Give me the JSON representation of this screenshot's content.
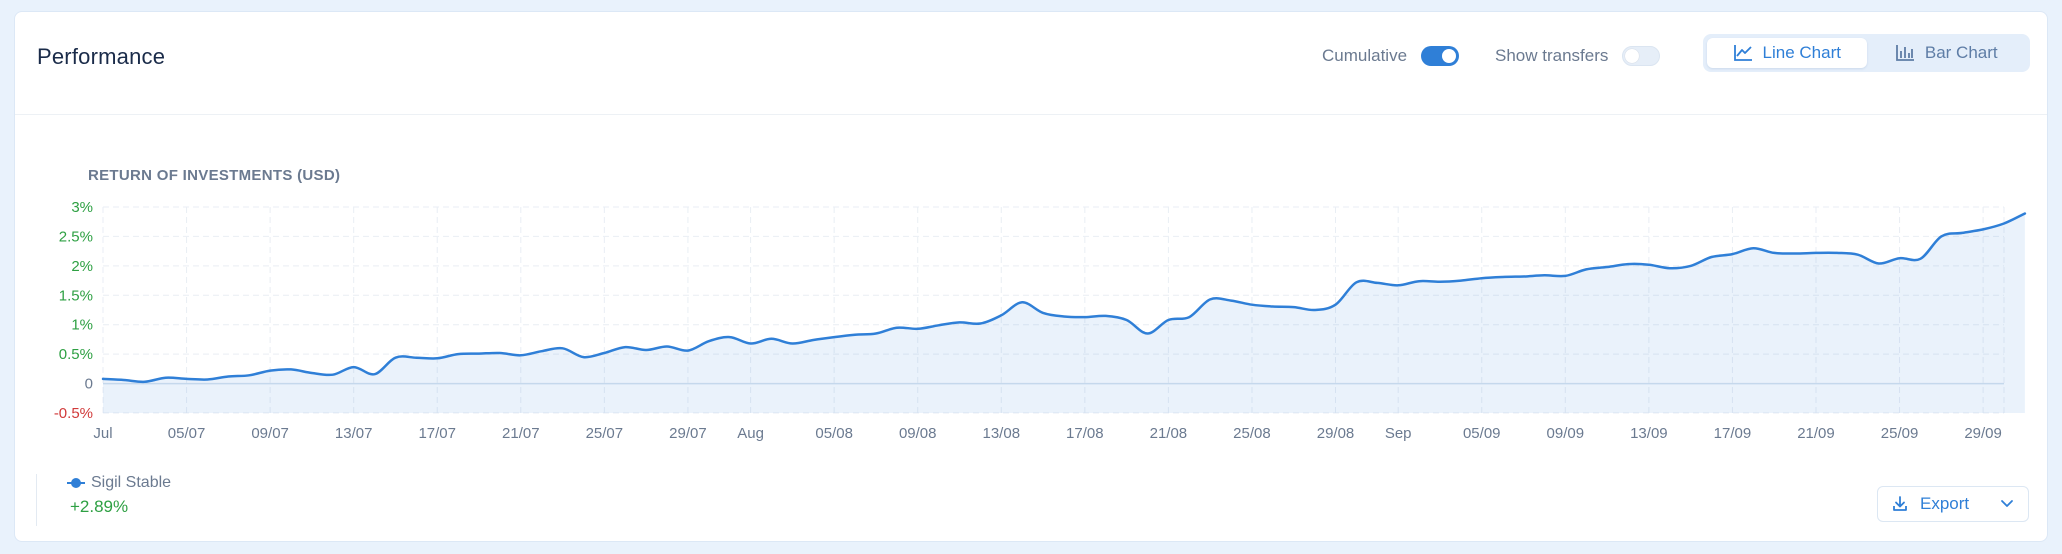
{
  "header": {
    "title": "Performance",
    "cumulative_label": "Cumulative",
    "cumulative_on": true,
    "transfers_label": "Show transfers",
    "transfers_on": false,
    "view_options": [
      {
        "label": "Line Chart",
        "icon": "line-chart-icon",
        "active": true
      },
      {
        "label": "Bar Chart",
        "icon": "bar-chart-icon",
        "active": false
      }
    ]
  },
  "chart_data": {
    "type": "area",
    "title": "RETURN OF INVESTMENTS (USD)",
    "ylim": [
      -0.5,
      3
    ],
    "y_ticks": [
      -0.5,
      0,
      0.5,
      1,
      1.5,
      2,
      2.5,
      3
    ],
    "y_tick_labels": [
      "-0.5%",
      "0",
      "0.5%",
      "1%",
      "1.5%",
      "2%",
      "2.5%",
      "3%"
    ],
    "x_start": "2024-07-01",
    "x_end": "2024-09-30",
    "x_ticks": [
      {
        "date": "2024-07-01",
        "label": "Jul"
      },
      {
        "date": "2024-07-05",
        "label": "05/07"
      },
      {
        "date": "2024-07-09",
        "label": "09/07"
      },
      {
        "date": "2024-07-13",
        "label": "13/07"
      },
      {
        "date": "2024-07-17",
        "label": "17/07"
      },
      {
        "date": "2024-07-21",
        "label": "21/07"
      },
      {
        "date": "2024-07-25",
        "label": "25/07"
      },
      {
        "date": "2024-07-29",
        "label": "29/07"
      },
      {
        "date": "2024-08-01",
        "label": "Aug"
      },
      {
        "date": "2024-08-05",
        "label": "05/08"
      },
      {
        "date": "2024-08-09",
        "label": "09/08"
      },
      {
        "date": "2024-08-13",
        "label": "13/08"
      },
      {
        "date": "2024-08-17",
        "label": "17/08"
      },
      {
        "date": "2024-08-21",
        "label": "21/08"
      },
      {
        "date": "2024-08-25",
        "label": "25/08"
      },
      {
        "date": "2024-08-29",
        "label": "29/08"
      },
      {
        "date": "2024-09-01",
        "label": "Sep"
      },
      {
        "date": "2024-09-05",
        "label": "05/09"
      },
      {
        "date": "2024-09-09",
        "label": "09/09"
      },
      {
        "date": "2024-09-13",
        "label": "13/09"
      },
      {
        "date": "2024-09-17",
        "label": "17/09"
      },
      {
        "date": "2024-09-21",
        "label": "21/09"
      },
      {
        "date": "2024-09-25",
        "label": "25/09"
      },
      {
        "date": "2024-09-29",
        "label": "29/09"
      }
    ],
    "grid": true,
    "series": [
      {
        "name": "Sigil Stable",
        "color": "#2f7fd7",
        "points": [
          [
            "2024-07-01",
            0.08
          ],
          [
            "2024-07-02",
            0.06
          ],
          [
            "2024-07-03",
            0.03
          ],
          [
            "2024-07-04",
            0.1
          ],
          [
            "2024-07-05",
            0.08
          ],
          [
            "2024-07-06",
            0.07
          ],
          [
            "2024-07-07",
            0.12
          ],
          [
            "2024-07-08",
            0.14
          ],
          [
            "2024-07-09",
            0.22
          ],
          [
            "2024-07-10",
            0.24
          ],
          [
            "2024-07-11",
            0.18
          ],
          [
            "2024-07-12",
            0.15
          ],
          [
            "2024-07-13",
            0.28
          ],
          [
            "2024-07-14",
            0.16
          ],
          [
            "2024-07-15",
            0.44
          ],
          [
            "2024-07-16",
            0.44
          ],
          [
            "2024-07-17",
            0.43
          ],
          [
            "2024-07-18",
            0.5
          ],
          [
            "2024-07-19",
            0.51
          ],
          [
            "2024-07-20",
            0.52
          ],
          [
            "2024-07-21",
            0.48
          ],
          [
            "2024-07-22",
            0.55
          ],
          [
            "2024-07-23",
            0.6
          ],
          [
            "2024-07-24",
            0.45
          ],
          [
            "2024-07-25",
            0.52
          ],
          [
            "2024-07-26",
            0.62
          ],
          [
            "2024-07-27",
            0.57
          ],
          [
            "2024-07-28",
            0.63
          ],
          [
            "2024-07-29",
            0.56
          ],
          [
            "2024-07-30",
            0.72
          ],
          [
            "2024-07-31",
            0.79
          ],
          [
            "2024-08-01",
            0.68
          ],
          [
            "2024-08-02",
            0.76
          ],
          [
            "2024-08-03",
            0.68
          ],
          [
            "2024-08-04",
            0.74
          ],
          [
            "2024-08-05",
            0.79
          ],
          [
            "2024-08-06",
            0.83
          ],
          [
            "2024-08-07",
            0.85
          ],
          [
            "2024-08-08",
            0.95
          ],
          [
            "2024-08-09",
            0.93
          ],
          [
            "2024-08-10",
            0.99
          ],
          [
            "2024-08-11",
            1.04
          ],
          [
            "2024-08-12",
            1.02
          ],
          [
            "2024-08-13",
            1.16
          ],
          [
            "2024-08-14",
            1.38
          ],
          [
            "2024-08-15",
            1.2
          ],
          [
            "2024-08-16",
            1.14
          ],
          [
            "2024-08-17",
            1.13
          ],
          [
            "2024-08-18",
            1.15
          ],
          [
            "2024-08-19",
            1.08
          ],
          [
            "2024-08-20",
            0.85
          ],
          [
            "2024-08-21",
            1.08
          ],
          [
            "2024-08-22",
            1.13
          ],
          [
            "2024-08-23",
            1.43
          ],
          [
            "2024-08-24",
            1.41
          ],
          [
            "2024-08-25",
            1.34
          ],
          [
            "2024-08-26",
            1.31
          ],
          [
            "2024-08-27",
            1.3
          ],
          [
            "2024-08-28",
            1.25
          ],
          [
            "2024-08-29",
            1.34
          ],
          [
            "2024-08-30",
            1.72
          ],
          [
            "2024-08-31",
            1.71
          ],
          [
            "2024-09-01",
            1.67
          ],
          [
            "2024-09-02",
            1.74
          ],
          [
            "2024-09-03",
            1.73
          ],
          [
            "2024-09-04",
            1.75
          ],
          [
            "2024-09-05",
            1.79
          ],
          [
            "2024-09-06",
            1.81
          ],
          [
            "2024-09-07",
            1.82
          ],
          [
            "2024-09-08",
            1.84
          ],
          [
            "2024-09-09",
            1.83
          ],
          [
            "2024-09-10",
            1.94
          ],
          [
            "2024-09-11",
            1.98
          ],
          [
            "2024-09-12",
            2.03
          ],
          [
            "2024-09-13",
            2.02
          ],
          [
            "2024-09-14",
            1.96
          ],
          [
            "2024-09-15",
            2.0
          ],
          [
            "2024-09-16",
            2.15
          ],
          [
            "2024-09-17",
            2.2
          ],
          [
            "2024-09-18",
            2.3
          ],
          [
            "2024-09-19",
            2.22
          ],
          [
            "2024-09-20",
            2.21
          ],
          [
            "2024-09-21",
            2.22
          ],
          [
            "2024-09-22",
            2.22
          ],
          [
            "2024-09-23",
            2.19
          ],
          [
            "2024-09-24",
            2.04
          ],
          [
            "2024-09-25",
            2.13
          ],
          [
            "2024-09-26",
            2.12
          ],
          [
            "2024-09-27",
            2.5
          ],
          [
            "2024-09-28",
            2.56
          ],
          [
            "2024-09-29",
            2.62
          ],
          [
            "2024-09-30",
            2.72
          ],
          [
            "2024-10-01",
            2.89
          ]
        ]
      }
    ]
  },
  "legend": {
    "series_name": "Sigil Stable",
    "value": "+2.89%"
  },
  "export": {
    "label": "Export",
    "icon": "download-icon"
  }
}
